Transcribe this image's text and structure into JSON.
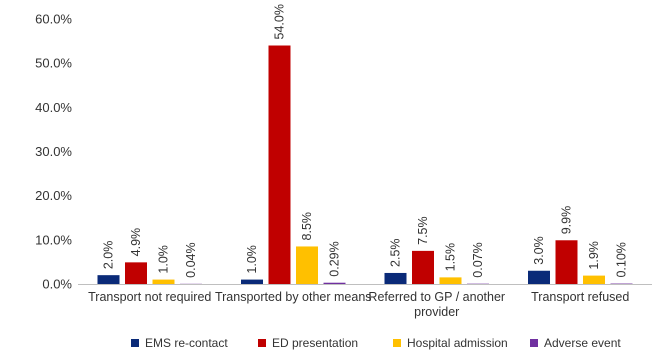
{
  "chart_data": {
    "type": "bar",
    "categories": [
      [
        "Transport not required"
      ],
      [
        "Transported by other means"
      ],
      [
        "Referred to GP / another",
        "provider"
      ],
      [
        "Transport refused"
      ]
    ],
    "series": [
      {
        "name": "EMS re-contact",
        "color": "#0a2a78",
        "values": [
          2.0,
          1.0,
          2.5,
          3.0
        ],
        "labels": [
          "2.0%",
          "1.0%",
          "2.5%",
          "3.0%"
        ]
      },
      {
        "name": "ED presentation",
        "color": "#c00000",
        "values": [
          4.9,
          54.0,
          7.5,
          9.9
        ],
        "labels": [
          "4.9%",
          "54.0%",
          "7.5%",
          "9.9%"
        ]
      },
      {
        "name": "Hospital admission",
        "color": "#ffc000",
        "values": [
          1.0,
          8.5,
          1.5,
          1.9
        ],
        "labels": [
          "1.0%",
          "8.5%",
          "1.5%",
          "1.9%"
        ]
      },
      {
        "name": "Adverse event",
        "color": "#7030a0",
        "values": [
          0.04,
          0.29,
          0.07,
          0.1
        ],
        "labels": [
          "0.04%",
          "0.29%",
          "0.07%",
          "0.10%"
        ]
      }
    ],
    "yticks": [
      "0.0%",
      "10.0%",
      "20.0%",
      "30.0%",
      "40.0%",
      "50.0%",
      "60.0%"
    ],
    "ylim": [
      0,
      60
    ],
    "grid": false,
    "legend": "bottom"
  }
}
